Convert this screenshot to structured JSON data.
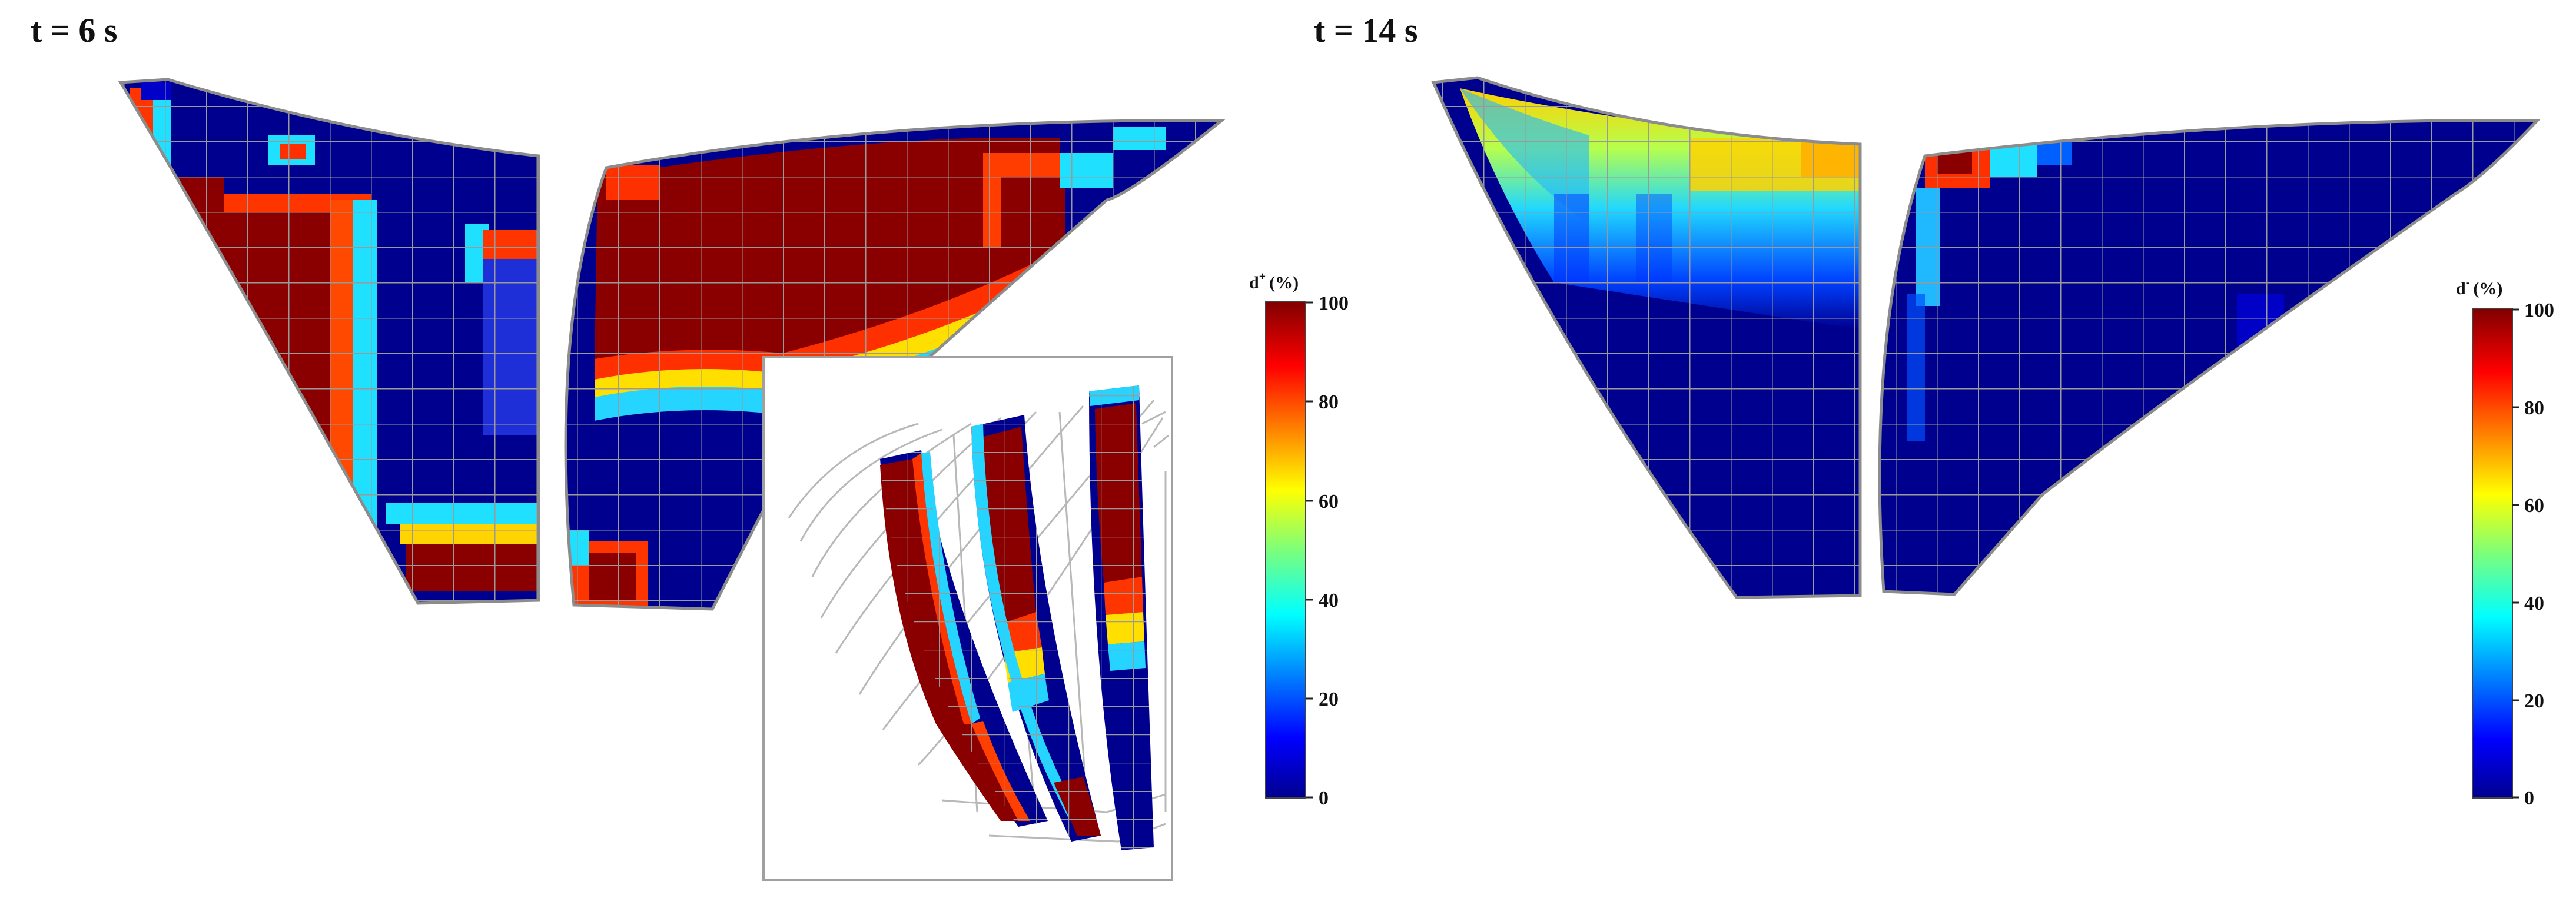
{
  "panels": [
    {
      "title": "t = 6 s"
    },
    {
      "title": "t = 14 s"
    }
  ],
  "colorbars": [
    {
      "label_base": "d",
      "label_sup": "+",
      "label_unit": "(%)",
      "ticks": [
        "100",
        "80",
        "60",
        "40",
        "20",
        "0"
      ]
    },
    {
      "label_base": "d",
      "label_sup": "-",
      "label_unit": "(%)",
      "ticks": [
        "100",
        "80",
        "60",
        "40",
        "20",
        "0"
      ]
    }
  ],
  "colors": {
    "low": "#00008f",
    "mid": "#25e7ff",
    "yellow": "#ffea00",
    "high": "#8a0000",
    "mesh": "#9a9a9a"
  },
  "colormap": "jet"
}
